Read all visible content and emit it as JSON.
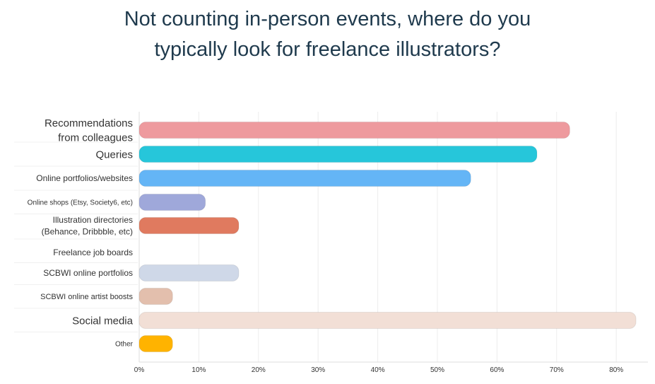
{
  "chart_data": {
    "type": "bar",
    "orientation": "horizontal",
    "title_lines": [
      "Not counting in-person events, where do you",
      "typically look for freelance illustrators?"
    ],
    "categories": [
      [
        "Recommendations",
        "from colleagues"
      ],
      [
        "Queries"
      ],
      [
        "Online portfolios/websites"
      ],
      [
        "Online shops (Etsy, Society6, etc)"
      ],
      [
        "Illustration directories",
        "(Behance, Dribbble, etc)"
      ],
      [
        "Freelance job boards"
      ],
      [
        "SCBWI online portfolios"
      ],
      [
        "SCBWI online artist boosts"
      ],
      [
        "Social media"
      ],
      [
        "Other"
      ]
    ],
    "values": [
      72.2,
      66.7,
      55.6,
      11.1,
      16.7,
      0,
      16.7,
      5.6,
      83.3,
      5.6
    ],
    "colors": [
      "#ee9a9e",
      "#26c6da",
      "#64b5f6",
      "#9fa8da",
      "#e07a5f",
      "#cccccc",
      "#cfd8e8",
      "#e3bfad",
      "#f2dfd6",
      "#ffb300"
    ],
    "x_ticks": [
      "0%",
      "10%",
      "20%",
      "30%",
      "40%",
      "50%",
      "60%",
      "70%",
      "80%"
    ],
    "xlim": [
      0,
      85
    ],
    "grid": true
  }
}
